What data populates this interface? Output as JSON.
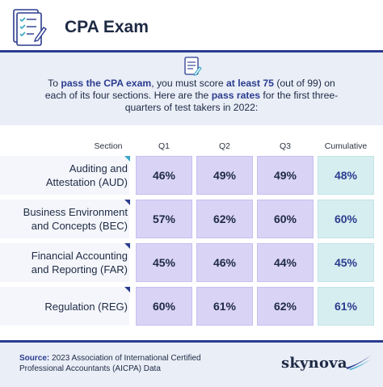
{
  "header": {
    "title": "CPA Exam",
    "icon": "checklist-clipboard-icon"
  },
  "intro": {
    "icon": "document-icon",
    "part1": "To ",
    "hl1": "pass the CPA exam",
    "part2": ", you must score ",
    "hl2": "at least 75",
    "part3": " (out of 99) on each of its four sections. Here are the ",
    "hl3": "pass rates",
    "part4": " for the first three-quarters of test takers in 2022:"
  },
  "table": {
    "columns": [
      "Section",
      "Q1",
      "Q2",
      "Q3",
      "Cumulative"
    ],
    "rows": [
      {
        "line1": "Auditing and",
        "line2": "Attestation (AUD)",
        "q1": "46%",
        "q2": "49%",
        "q3": "49%",
        "cumulative": "48%"
      },
      {
        "line1": "Business Environment",
        "line2": "and Concepts (BEC)",
        "q1": "57%",
        "q2": "62%",
        "q3": "60%",
        "cumulative": "60%"
      },
      {
        "line1": "Financial Accounting",
        "line2": "and Reporting (FAR)",
        "q1": "45%",
        "q2": "46%",
        "q3": "44%",
        "cumulative": "45%"
      },
      {
        "line1": "Regulation (REG)",
        "line2": "",
        "q1": "60%",
        "q2": "61%",
        "q3": "62%",
        "cumulative": "61%"
      }
    ],
    "corner_colors": [
      "#3aa6c9",
      "#2b3c8f",
      "#2b3c8f",
      "#2b3c8f"
    ]
  },
  "footer": {
    "source_label": "Source:",
    "source_line1": " 2023 Association of International Certified",
    "source_line2": "Professional Accountants (AICPA) Data",
    "logo": "skynova",
    "logo_icon": "skynova-swoosh-icon"
  },
  "colors": {
    "brand_navy": "#2b3c8f",
    "quarter_cell": "#d9d3f5",
    "cumulative_cell": "#d7eef0",
    "panel_bg": "#e9eef7"
  }
}
